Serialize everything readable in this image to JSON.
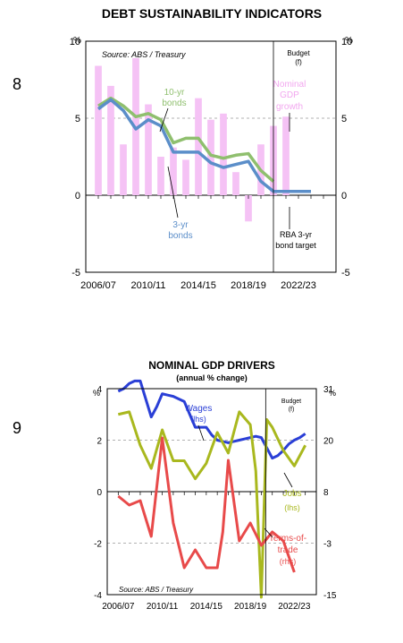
{
  "slides": [
    {
      "number": "8"
    },
    {
      "number": "9"
    }
  ],
  "chart_data": [
    {
      "type": "bar",
      "title": "DEBT SUSTAINABILITY INDICATORS",
      "source": "Source: ABS / Treasury",
      "unit_left": "%",
      "unit_right": "%",
      "ylim": [
        -5,
        10
      ],
      "yticks": [
        "10",
        "5",
        "0",
        "-5"
      ],
      "ytick_values": [
        10,
        5,
        0,
        -5
      ],
      "x_tick_labels": [
        "2006/07",
        "2010/11",
        "2014/15",
        "2018/19",
        "2022/23"
      ],
      "x_tick_positions": [
        2007,
        2011,
        2015,
        2019,
        2023
      ],
      "x_range": [
        2006,
        2026
      ],
      "grid": true,
      "budget_divider_x": 2021,
      "budget_label": [
        "Budget",
        "(f)"
      ],
      "categories": [
        2007,
        2008,
        2009,
        2010,
        2011,
        2012,
        2013,
        2014,
        2015,
        2016,
        2017,
        2018,
        2019,
        2020,
        2021,
        2022,
        2023
      ],
      "bar_color": "#f5c2f5",
      "bars": {
        "name": "Nominal GDP growth",
        "values": [
          8.4,
          7.1,
          3.3,
          8.9,
          5.9,
          2.5,
          3.1,
          2.3,
          6.3,
          4.9,
          5.3,
          1.5,
          -1.7,
          3.3,
          4.5,
          5.1,
          null
        ]
      },
      "series": [
        {
          "name": "10-yr bonds",
          "color": "#8fbf6e",
          "x": [
            2007,
            2008,
            2009,
            2010,
            2011,
            2012,
            2013,
            2014,
            2015,
            2016,
            2017,
            2018,
            2019,
            2020,
            2021
          ],
          "values": [
            5.8,
            6.3,
            5.8,
            5.1,
            5.3,
            4.9,
            3.4,
            3.7,
            3.7,
            2.6,
            2.4,
            2.6,
            2.7,
            1.6,
            0.9
          ]
        },
        {
          "name": "3-yr bonds",
          "color": "#5b8ec9",
          "x": [
            2007,
            2008,
            2009,
            2010,
            2011,
            2012,
            2013,
            2014,
            2015,
            2016,
            2017,
            2018,
            2019,
            2020,
            2021,
            2022,
            2023,
            2024
          ],
          "values": [
            5.6,
            6.2,
            5.5,
            4.3,
            4.9,
            4.5,
            2.8,
            2.8,
            2.8,
            2.1,
            1.8,
            2.0,
            2.2,
            0.9,
            0.25,
            0.25,
            0.25,
            0.25
          ]
        }
      ],
      "annotations": {
        "ten_yr": [
          "10-yr",
          "bonds"
        ],
        "three_yr": [
          "3-yr",
          "bonds"
        ],
        "ngdp": [
          "Nominal",
          "GDP",
          "growth"
        ],
        "rba": [
          "RBA 3-yr",
          "bond target"
        ]
      },
      "colors": {
        "ten_yr": "#8fbf6e",
        "three_yr": "#5b8ec9",
        "ngdp": "#f2a7ef"
      }
    },
    {
      "type": "line",
      "title": "NOMINAL GDP DRIVERS",
      "subtitle": "(annual % change)",
      "source": "Source: ABS / Treasury",
      "unit_left": "%",
      "unit_right": "%",
      "ylim_left": [
        -4,
        4
      ],
      "yticks_left": [
        "4",
        "2",
        "0",
        "-2",
        "-4"
      ],
      "ytick_values_left": [
        4,
        2,
        0,
        -2,
        -4
      ],
      "ylim_right": [
        -15,
        31
      ],
      "yticks_right": [
        "31",
        "20",
        "8",
        "-3",
        "-15"
      ],
      "x_tick_labels": [
        "2006/07",
        "2010/11",
        "2014/15",
        "2018/19",
        "2022/23"
      ],
      "x_tick_positions": [
        2007,
        2011,
        2015,
        2019,
        2023
      ],
      "x_range": [
        2006,
        2025
      ],
      "grid": true,
      "budget_divider_x": 2020.4,
      "budget_label": [
        "Budget",
        "(f)"
      ],
      "series": [
        {
          "name": "Wages",
          "axis": "left",
          "color": "#2a3fd6",
          "x": [
            2007,
            2007.5,
            2008,
            2008.5,
            2009,
            2009.5,
            2010,
            2010.5,
            2011,
            2011.5,
            2012,
            2012.5,
            2013,
            2013.5,
            2014,
            2014.5,
            2015,
            2015.5,
            2016,
            2016.5,
            2017,
            2017.5,
            2018,
            2018.5,
            2019,
            2019.5,
            2020,
            2020.5,
            2021,
            2021.5,
            2022,
            2022.5,
            2023,
            2023.5,
            2024
          ],
          "values": [
            3.9,
            4.0,
            4.2,
            4.3,
            4.3,
            3.6,
            2.9,
            3.3,
            3.8,
            3.75,
            3.7,
            3.6,
            3.5,
            3.0,
            2.5,
            2.5,
            2.5,
            2.2,
            2.0,
            1.95,
            1.9,
            1.95,
            2.0,
            2.05,
            2.1,
            2.15,
            2.1,
            1.7,
            1.3,
            1.4,
            1.6,
            1.85,
            2.0,
            2.1,
            2.25
          ]
        },
        {
          "name": "Jobs",
          "axis": "left",
          "color": "#a9b81e",
          "x": [
            2007,
            2008,
            2009,
            2010,
            2011,
            2012,
            2013,
            2014,
            2015,
            2016,
            2017,
            2018,
            2019,
            2019.5,
            2020,
            2020.5,
            2021,
            2022,
            2023,
            2024
          ],
          "values": [
            3.0,
            3.1,
            1.8,
            0.9,
            2.4,
            1.2,
            1.2,
            0.5,
            1.1,
            2.3,
            1.5,
            3.1,
            2.6,
            0.8,
            -4.1,
            2.8,
            2.5,
            1.6,
            1.0,
            1.8
          ]
        },
        {
          "name": "Terms-of-trade",
          "axis": "right",
          "color": "#e84a4a",
          "x": [
            2007,
            2008,
            2009,
            2010,
            2011,
            2012,
            2013,
            2014,
            2015,
            2016,
            2016.5,
            2017,
            2017.5,
            2018,
            2019,
            2020,
            2021,
            2022,
            2023
          ],
          "values": [
            7,
            5,
            6,
            -2,
            20,
            1,
            -9,
            -5,
            -9,
            -9,
            -1,
            15,
            6,
            -3,
            1,
            -4,
            -1,
            -3,
            -10
          ]
        }
      ],
      "annotations": {
        "wages": [
          "Wages",
          "(lhs)"
        ],
        "jobs": [
          "Jobs",
          "(lhs)"
        ],
        "tot": [
          "Terms-of-",
          "trade",
          "(rhs)"
        ]
      },
      "colors": {
        "wages": "#2a3fd6",
        "jobs": "#a9b81e",
        "tot": "#e84a4a"
      }
    }
  ]
}
